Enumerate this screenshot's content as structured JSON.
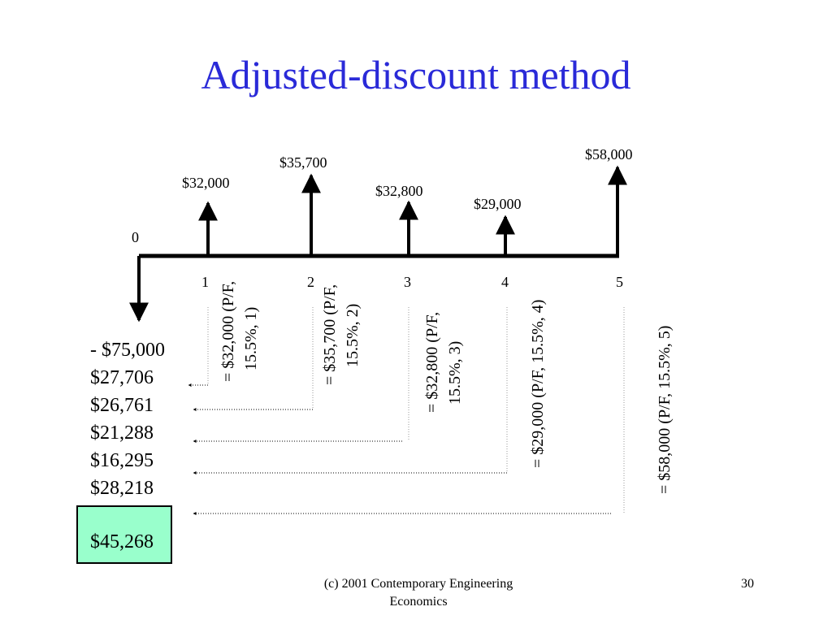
{
  "title": "Adjusted-discount method",
  "cash_flows": {
    "origin_label": "0",
    "periods": [
      {
        "n": "1",
        "amount": "$32,000",
        "formula_line1": "= $32,000 (P/F,",
        "formula_line2": "15.5%, 1)"
      },
      {
        "n": "2",
        "amount": "$35,700",
        "formula_line1": "= $35,700 (P/F,",
        "formula_line2": "15.5%, 2)"
      },
      {
        "n": "3",
        "amount": "$32,800",
        "formula_line1": "= $32,800 (P/F,",
        "formula_line2": "15.5%, 3)"
      },
      {
        "n": "4",
        "amount": "$29,000",
        "formula_line1": "= $29,000 (P/F, 15.5%, 4)",
        "formula_line2": ""
      },
      {
        "n": "5",
        "amount": "$58,000",
        "formula_line1": "= $58,000 (P/F, 15.5%, 5)",
        "formula_line2": ""
      }
    ]
  },
  "present_values": {
    "initial": "- $75,000",
    "values": [
      "$27,706",
      "$26,761",
      "$21,288",
      "$16,295",
      "$28,218"
    ],
    "total": "$45,268"
  },
  "footer": {
    "line1": "(c) 2001 Contemporary Engineering",
    "line2": "Economics",
    "page_number": "30"
  },
  "colors": {
    "title": "#2a2ad8",
    "total_box": "#99ffcc"
  }
}
